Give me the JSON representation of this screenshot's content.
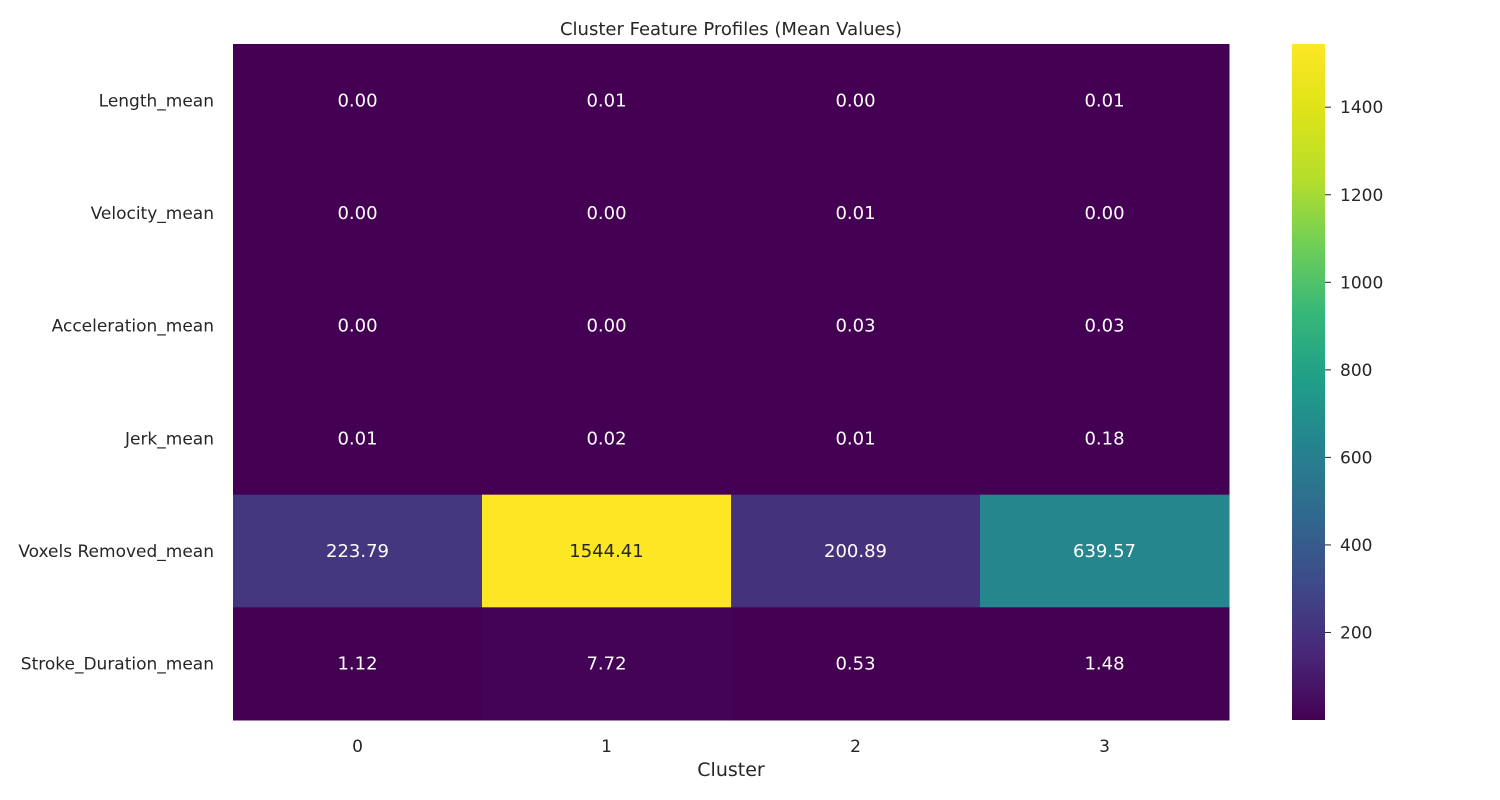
{
  "chart_data": {
    "type": "heatmap",
    "title": "Cluster Feature Profiles (Mean Values)",
    "xlabel": "Cluster",
    "ylabel": "",
    "x_categories": [
      "0",
      "1",
      "2",
      "3"
    ],
    "y_categories": [
      "Length_mean",
      "Velocity_mean",
      "Acceleration_mean",
      "Jerk_mean",
      "Voxels Removed_mean",
      "Stroke_Duration_mean"
    ],
    "values": [
      [
        0.0,
        0.01,
        0.0,
        0.01
      ],
      [
        0.0,
        0.0,
        0.01,
        0.0
      ],
      [
        0.0,
        0.0,
        0.03,
        0.03
      ],
      [
        0.01,
        0.02,
        0.01,
        0.18
      ],
      [
        223.79,
        1544.41,
        200.89,
        639.57
      ],
      [
        1.12,
        7.72,
        0.53,
        1.48
      ]
    ],
    "value_format": "2 decimals",
    "colormap": "viridis",
    "color_range": [
      0,
      1544.41
    ],
    "colorbar_ticks": [
      200,
      400,
      600,
      800,
      1000,
      1200,
      1400
    ],
    "colorbar_tick_labels": [
      "200",
      "400",
      "600",
      "800",
      "1000",
      "1200",
      "1400"
    ],
    "grid": false,
    "colorbar_position": "right"
  }
}
